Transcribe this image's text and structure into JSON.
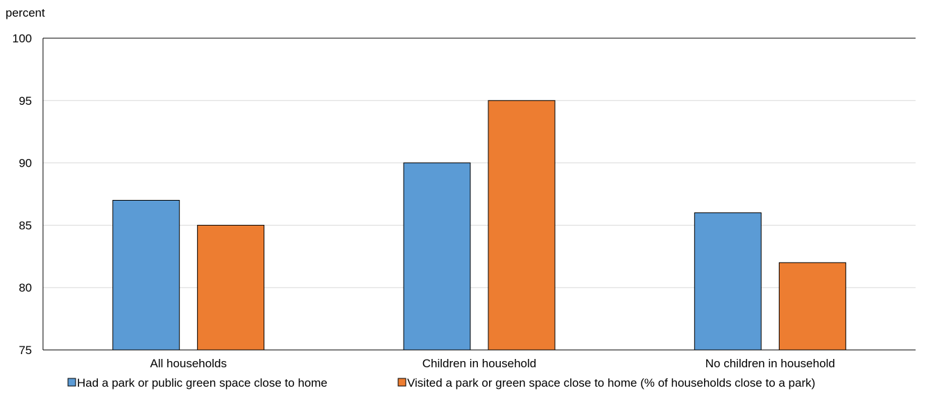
{
  "chart_data": {
    "type": "bar",
    "title": "",
    "xlabel": "",
    "ylabel": "percent",
    "ylim": [
      75,
      100
    ],
    "yticks": [
      75,
      80,
      85,
      90,
      95,
      100
    ],
    "grid": true,
    "legend_position": "bottom",
    "categories": [
      "All households",
      "Children in household",
      "No children in household"
    ],
    "series": [
      {
        "name": "Had a park or public green space close to home",
        "color": "#5b9bd5",
        "values": [
          87,
          90,
          86
        ]
      },
      {
        "name": "Visited a park or green space close to home (% of households close to a park)",
        "color": "#ed7d31",
        "values": [
          85,
          95,
          82
        ]
      }
    ]
  }
}
